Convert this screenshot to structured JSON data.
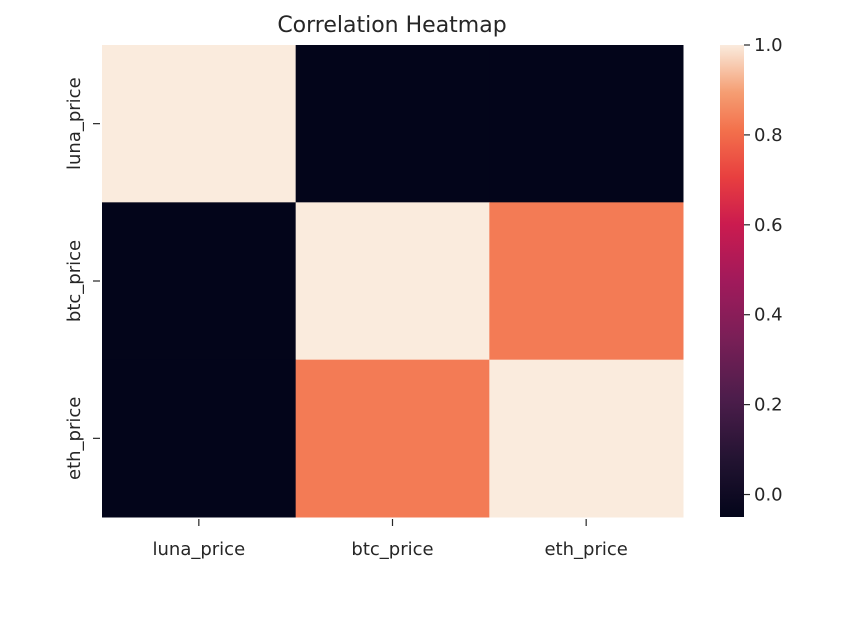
{
  "chart_data": {
    "type": "heatmap",
    "title": "Correlation Heatmap",
    "x_labels": [
      "luna_price",
      "btc_price",
      "eth_price"
    ],
    "y_labels": [
      "luna_price",
      "btc_price",
      "eth_price"
    ],
    "values": [
      [
        1.0,
        -0.05,
        -0.05
      ],
      [
        -0.05,
        1.0,
        0.83
      ],
      [
        -0.05,
        0.83,
        1.0
      ]
    ],
    "colorbar": {
      "range": [
        -0.05,
        1.0
      ],
      "ticks": [
        0.0,
        0.2,
        0.4,
        0.6,
        0.8,
        1.0
      ],
      "tick_labels": [
        "0.0",
        "0.2",
        "0.4",
        "0.6",
        "0.8",
        "1.0"
      ],
      "colormap": "rocket"
    },
    "grid": false
  }
}
